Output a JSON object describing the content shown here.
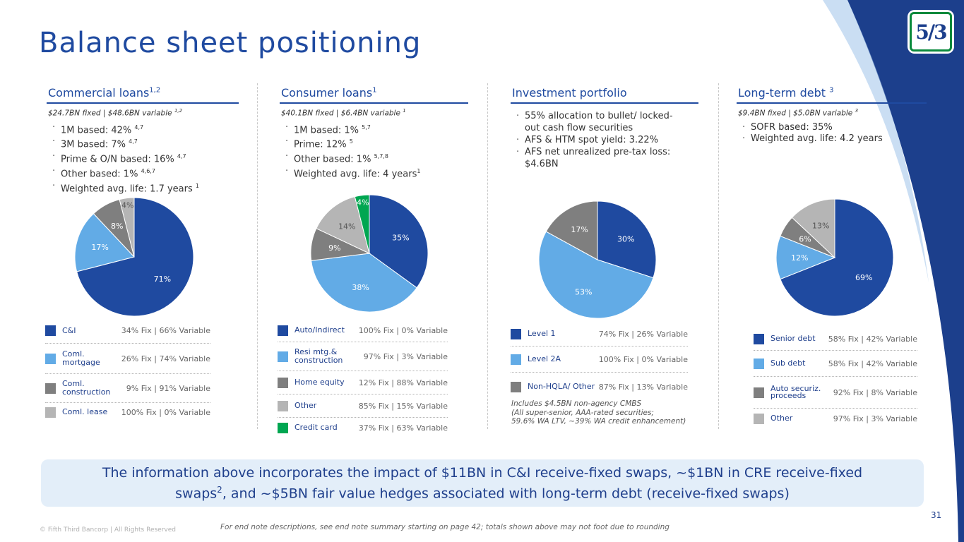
{
  "title": "Balance sheet positioning",
  "logo_text": "5/3",
  "colors": {
    "brand_blue": "#1f4aa0",
    "navy": "#1c3f8c",
    "light_blue": "#62abe6",
    "gray": "#7f7f7f",
    "light_gray": "#b5b5b5",
    "green": "#00a651",
    "banner_bg": "#e3eef9"
  },
  "commercial": {
    "heading": "Commercial loans",
    "heading_sup": "1,2",
    "subtitle": "$24.7BN fixed | $48.6BN variable",
    "subtitle_sup": "1,2",
    "bullets": [
      {
        "text": "1M based: 42%",
        "sup": "4,7"
      },
      {
        "text": "3M based: 7%",
        "sup": "4,7"
      },
      {
        "text": "Prime & O/N based: 16%",
        "sup": "4,7"
      },
      {
        "text": "Other based: 1%",
        "sup": "4,6,7"
      },
      {
        "text": "Weighted avg. life: 1.7 years",
        "sup": "1"
      }
    ],
    "legend": [
      {
        "name": "C&I",
        "value": "34% Fix | 66% Variable"
      },
      {
        "name": "Coml. mortgage",
        "value": "26% Fix | 74% Variable"
      },
      {
        "name": "Coml. construction",
        "value": "9% Fix | 91% Variable"
      },
      {
        "name": "Coml. lease",
        "value": "100% Fix | 0% Variable"
      }
    ]
  },
  "consumer": {
    "heading": "Consumer loans",
    "heading_sup": "1",
    "subtitle": "$40.1BN fixed | $6.4BN variable",
    "subtitle_sup": "1",
    "bullets": [
      {
        "text": "1M based: 1%",
        "sup": "5,7"
      },
      {
        "text": "Prime: 12%",
        "sup": "5"
      },
      {
        "text": "Other based: 1%",
        "sup": "5,7,8"
      },
      {
        "text": "Weighted avg. life: 4 years",
        "sup": "1"
      }
    ],
    "legend": [
      {
        "name": "Auto/Indirect",
        "value": "100% Fix | 0% Variable"
      },
      {
        "name": "Resi mtg.& construction",
        "value": "97% Fix | 3% Variable"
      },
      {
        "name": "Home equity",
        "value": "12% Fix | 88% Variable"
      },
      {
        "name": "Other",
        "value": "85% Fix | 15% Variable"
      },
      {
        "name": "Credit card",
        "value": "37% Fix | 63% Variable"
      }
    ]
  },
  "investment": {
    "heading": "Investment portfolio",
    "bullets": [
      {
        "text": "55% allocation to bullet/ locked-\nout cash flow securities"
      },
      {
        "text": "AFS & HTM spot yield: 3.22%"
      },
      {
        "text": "AFS net unrealized pre-tax loss:\n$4.6BN"
      }
    ],
    "legend": [
      {
        "name": "Level 1",
        "value": "74% Fix | 26% Variable"
      },
      {
        "name": "Level 2A",
        "value": "100% Fix | 0% Variable"
      },
      {
        "name": "Non-HQLA/ Other",
        "value": "87% Fix | 13% Variable"
      }
    ],
    "note": "Includes $4.5BN non-agency CMBS\n(All super-senior, AAA-rated securities;\n59.6% WA LTV, ~39% WA credit enhancement)"
  },
  "debt": {
    "heading": "Long-term debt",
    "heading_sup": "3",
    "subtitle": "$9.4BN fixed | $5.0BN variable",
    "subtitle_sup": "3",
    "bullets": [
      {
        "text": "SOFR based: 35%"
      },
      {
        "text": "Weighted avg. life: 4.2 years"
      }
    ],
    "legend": [
      {
        "name": "Senior debt",
        "value": "58% Fix | 42% Variable"
      },
      {
        "name": "Sub debt",
        "value": "58% Fix | 42% Variable"
      },
      {
        "name": "Auto securiz. proceeds",
        "value": "92% Fix | 8% Variable"
      },
      {
        "name": "Other",
        "value": "97% Fix | 3% Variable"
      }
    ]
  },
  "chart_data": [
    {
      "type": "pie",
      "title": "Commercial loans",
      "labels": [
        "C&I",
        "Coml. mortgage",
        "Coml. construction",
        "Coml. lease"
      ],
      "values": [
        71,
        17,
        8,
        4
      ],
      "colors": [
        "#1f4aa0",
        "#62abe6",
        "#7f7f7f",
        "#b5b5b5"
      ]
    },
    {
      "type": "pie",
      "title": "Consumer loans",
      "labels": [
        "Auto/Indirect",
        "Resi mtg.& construction",
        "Home equity",
        "Other",
        "Credit card"
      ],
      "values": [
        35,
        38,
        9,
        14,
        4
      ],
      "colors": [
        "#1f4aa0",
        "#62abe6",
        "#7f7f7f",
        "#b5b5b5",
        "#00a651"
      ]
    },
    {
      "type": "pie",
      "title": "Investment portfolio",
      "labels": [
        "Level 1",
        "Level 2A",
        "Non-HQLA/ Other"
      ],
      "values": [
        30,
        53,
        17
      ],
      "colors": [
        "#1f4aa0",
        "#62abe6",
        "#7f7f7f"
      ]
    },
    {
      "type": "pie",
      "title": "Long-term debt",
      "labels": [
        "Senior debt",
        "Sub debt",
        "Auto securiz. proceeds",
        "Other"
      ],
      "values": [
        69,
        12,
        6,
        13
      ],
      "colors": [
        "#1f4aa0",
        "#62abe6",
        "#7f7f7f",
        "#b5b5b5"
      ]
    }
  ],
  "banner": {
    "line1": "The information above incorporates the impact of $11BN in C&I receive-fixed swaps, ~$1BN in CRE receive-fixed",
    "line2a": "swaps",
    "line2_sup": "2",
    "line2b": ", and ~$5BN fair value hedges associated with long-term debt (receive-fixed swaps)"
  },
  "footer": {
    "copyright": "© Fifth Third Bancorp | All Rights Reserved",
    "endnote": "For end note descriptions, see end note summary starting on page 42; totals shown above may not foot due to rounding",
    "page_number": "31"
  }
}
